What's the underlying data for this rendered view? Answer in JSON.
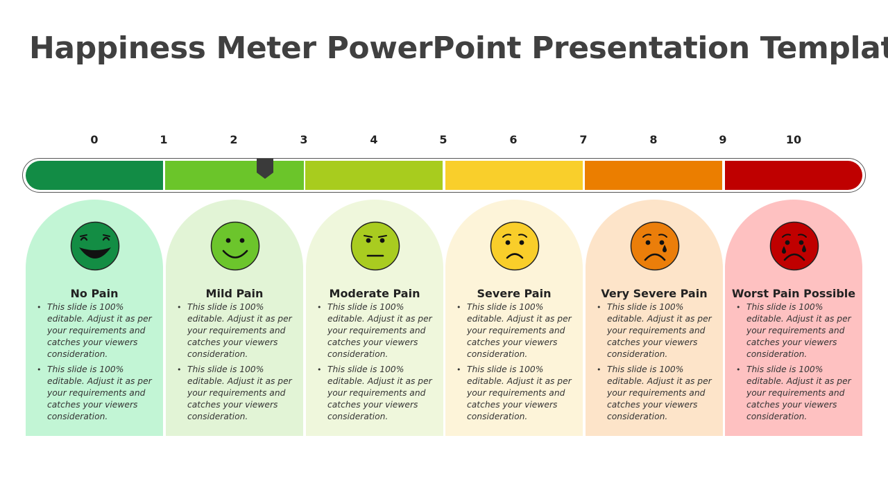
{
  "title": "Happiness Meter PowerPoint Presentation Template",
  "scale": {
    "labels": [
      "0",
      "1",
      "2",
      "3",
      "4",
      "5",
      "6",
      "7",
      "8",
      "9",
      "10"
    ],
    "pointer_value": 2.45
  },
  "levels": [
    {
      "title": "No Pain",
      "color": "#128c45",
      "card_color": "#c2f5d5",
      "face_color": "#138d44",
      "icon": "laughing-face-icon",
      "bullets": [
        "This slide is 100% editable. Adjust it as per your requirements and catches your viewers consideration.",
        "This slide is 100% editable. Adjust it as per your requirements and catches your viewers consideration."
      ]
    },
    {
      "title": "Mild Pain",
      "color": "#6bc52a",
      "card_color": "#e2f4d6",
      "face_color": "#6cc52c",
      "icon": "smiling-face-icon",
      "bullets": [
        "This slide is 100% editable. Adjust it as per your requirements and catches your viewers consideration.",
        "This slide is 100% editable. Adjust it as per your requirements and catches your viewers consideration."
      ]
    },
    {
      "title": "Moderate Pain",
      "color": "#a8cc1e",
      "card_color": "#eff7dc",
      "face_color": "#a9cc20",
      "icon": "neutral-face-icon",
      "bullets": [
        "This slide is 100% editable. Adjust it as per your requirements and catches your viewers consideration.",
        "This slide is 100% editable. Adjust it as per your requirements and catches your viewers consideration."
      ]
    },
    {
      "title": "Severe Pain",
      "color": "#f9cf2b",
      "card_color": "#fdf4d9",
      "face_color": "#f9ce2a",
      "icon": "worried-face-icon",
      "bullets": [
        "This slide is 100% editable. Adjust it as per your requirements and catches your viewers consideration.",
        "This slide is 100% editable. Adjust it as per your requirements and catches your viewers consideration."
      ]
    },
    {
      "title": "Very Severe Pain",
      "color": "#eb7e00",
      "card_color": "#fde4c9",
      "face_color": "#eb7e0a",
      "icon": "crying-face-icon",
      "bullets": [
        "This slide is 100% editable. Adjust it as per your requirements and catches your viewers consideration.",
        "This slide is 100% editable. Adjust it as per your requirements and catches your viewers consideration."
      ]
    },
    {
      "title": "Worst Pain Possible",
      "color": "#bf0000",
      "card_color": "#fec1c1",
      "face_color": "#c00000",
      "icon": "sobbing-face-icon",
      "bullets": [
        "This slide is 100% editable. Adjust it as per your requirements and catches your viewers consideration.",
        "This slide is 100% editable. Adjust it as per your requirements and catches your viewers consideration."
      ]
    }
  ]
}
